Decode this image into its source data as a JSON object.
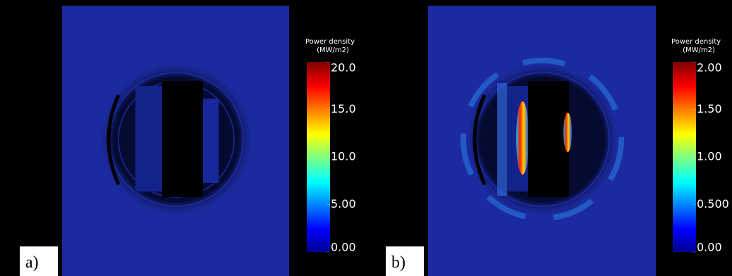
{
  "panels": [
    {
      "label": "a)",
      "colorbar": {
        "title": "Power density",
        "units": "(MW/m2)",
        "ticks": [
          {
            "value": 0,
            "label": "0.00"
          },
          {
            "value": 5,
            "label": "5.00"
          },
          {
            "value": 10,
            "label": "10.0"
          },
          {
            "value": 15,
            "label": "15.0"
          },
          {
            "value": 20,
            "label": "20.0"
          }
        ]
      }
    },
    {
      "label": "b)",
      "colorbar": {
        "title": "Power density",
        "units": "(MW/m2)",
        "ticks": [
          {
            "value": 0,
            "label": "0.00"
          },
          {
            "value": 0.5,
            "label": "0.500"
          },
          {
            "value": 1,
            "label": "1.00"
          },
          {
            "value": 1.5,
            "label": "1.50"
          },
          {
            "value": 2,
            "label": "2.00"
          }
        ]
      }
    }
  ]
}
